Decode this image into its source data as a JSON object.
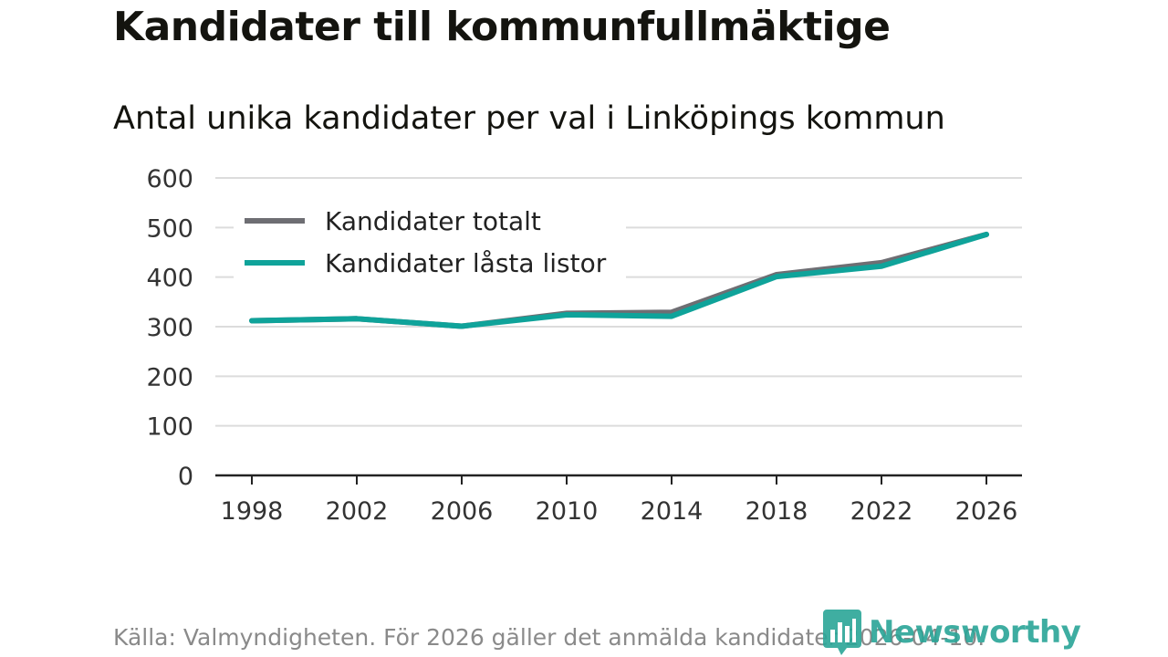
{
  "chart_data": {
    "type": "line",
    "title": "Kandidater till kommunfullmäktige",
    "subtitle": "Antal unika kandidater per val i Linköpings kommun",
    "xlabel": "",
    "ylabel": "",
    "x": [
      "1998",
      "2002",
      "2006",
      "2010",
      "2014",
      "2018",
      "2022",
      "2026"
    ],
    "yticks": [
      "0",
      "100",
      "200",
      "300",
      "400",
      "500",
      "600"
    ],
    "ylim": [
      0,
      600
    ],
    "grid": true,
    "legend_position": "top-left",
    "series": [
      {
        "name": "Kandidater totalt",
        "color": "#6e6e73",
        "values": [
          312,
          316,
          301,
          327,
          329,
          405,
          429,
          486
        ]
      },
      {
        "name": "Kandidater låsta listor",
        "color": "#0fa39a",
        "values": [
          312,
          316,
          301,
          324,
          321,
          401,
          422,
          486
        ]
      }
    ]
  },
  "source": "Källa: Valmyndigheten. För 2026 gäller det anmälda kandidater 2026-04-10.",
  "brand": {
    "name": "Newsworthy",
    "icon": "bar-chart-bubble-icon",
    "color": "#2aa597"
  }
}
